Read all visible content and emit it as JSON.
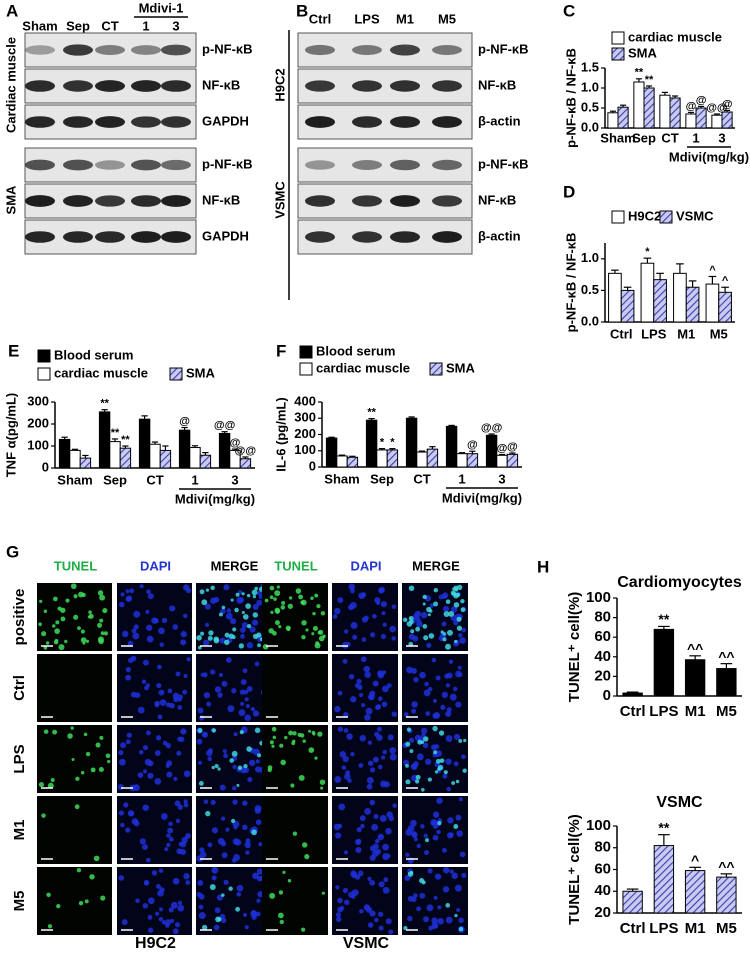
{
  "panels": {
    "A": {
      "label": "A",
      "group_label": "Mdivi-1",
      "lanes": [
        "Sham",
        "Sep",
        "CT",
        "1",
        "3"
      ],
      "sections": [
        {
          "name": "Cardiac muscle",
          "blots": [
            "p-NF-κB",
            "NF-κB",
            "GAPDH"
          ]
        },
        {
          "name": "SMA",
          "blots": [
            "p-NF-κB",
            "NF-κB",
            "GAPDH"
          ]
        }
      ]
    },
    "B": {
      "label": "B",
      "lanes": [
        "Ctrl",
        "LPS",
        "M1",
        "M5"
      ],
      "sections": [
        {
          "name": "H9C2",
          "blots": [
            "p-NF-κB",
            "NF-κB",
            "β-actin"
          ]
        },
        {
          "name": "VSMC",
          "blots": [
            "p-NF-κB",
            "NF-κB",
            "β-actin"
          ]
        }
      ]
    },
    "G": {
      "label": "G",
      "columns": [
        "TUNEL",
        "DAPI",
        "MERGE"
      ],
      "rows": [
        "positive",
        "Ctrl",
        "LPS",
        "M1",
        "M5"
      ],
      "cell_lines": [
        "H9C2",
        "VSMC"
      ]
    }
  },
  "chart_data": [
    {
      "type": "bar",
      "panel": "C",
      "ylabel": "p-NF-κB / NF-κB",
      "xlabel": "Mdivi(mg/kg)",
      "categories": [
        "Sham",
        "Sep",
        "CT",
        "1",
        "3"
      ],
      "series": [
        {
          "name": "cardiac muscle",
          "color": "#ffffff",
          "values": [
            0.38,
            1.15,
            0.82,
            0.35,
            0.32
          ],
          "errors": [
            0.04,
            0.08,
            0.07,
            0.04,
            0.03
          ],
          "annotations": [
            null,
            "**",
            null,
            "@",
            "@@"
          ]
        },
        {
          "name": "SMA",
          "color": "#3b3ea8",
          "hatch": true,
          "values": [
            0.52,
            1.0,
            0.75,
            0.5,
            0.4
          ],
          "errors": [
            0.05,
            0.05,
            0.05,
            0.04,
            0.04
          ],
          "annotations": [
            null,
            "**",
            null,
            "@",
            "@"
          ]
        }
      ],
      "ylim": [
        0,
        1.5
      ],
      "yticks": [
        {
          "value": 0,
          "label": "0.0"
        },
        0.5,
        {
          "value": 1,
          "label": "1.0"
        },
        1.5
      ]
    },
    {
      "type": "bar",
      "panel": "D",
      "ylabel": "p-NF-κB / NF-κB",
      "categories": [
        "Ctrl",
        "LPS",
        "M1",
        "M5"
      ],
      "series": [
        {
          "name": "H9C2",
          "color": "#ffffff",
          "values": [
            0.77,
            0.93,
            0.77,
            0.6
          ],
          "errors": [
            0.05,
            0.08,
            0.15,
            0.12
          ],
          "annotations": [
            null,
            "*",
            null,
            "^"
          ]
        },
        {
          "name": "VSMC",
          "color": "#3b3ea8",
          "hatch": true,
          "values": [
            0.5,
            0.67,
            0.55,
            0.47
          ],
          "errors": [
            0.05,
            0.1,
            0.1,
            0.08
          ],
          "annotations": [
            null,
            null,
            null,
            "^"
          ]
        }
      ],
      "ylim": [
        0,
        1.25
      ],
      "yticks": [
        {
          "value": 0,
          "label": "0.0"
        },
        0.5,
        {
          "value": 1,
          "label": "1.0"
        }
      ]
    },
    {
      "type": "bar",
      "panel": "E",
      "ylabel": "TNF α(pg/mL)",
      "xlabel": "Mdivi(mg/kg)",
      "categories": [
        "Sham",
        "Sep",
        "CT",
        "1",
        "3"
      ],
      "series": [
        {
          "name": "Blood serum",
          "color": "#000000",
          "values": [
            130,
            255,
            222,
            172,
            157
          ],
          "errors": [
            10,
            10,
            15,
            12,
            8
          ],
          "annotations": [
            null,
            "**",
            null,
            "@",
            "@@"
          ]
        },
        {
          "name": "cardiac muscle",
          "color": "#ffffff",
          "values": [
            80,
            120,
            108,
            93,
            80
          ],
          "errors": [
            5,
            12,
            10,
            8,
            6
          ],
          "annotations": [
            null,
            "**",
            null,
            null,
            "@"
          ]
        },
        {
          "name": "SMA",
          "color": "#3b3ea8",
          "hatch": true,
          "values": [
            45,
            90,
            80,
            58,
            42
          ],
          "errors": [
            12,
            10,
            20,
            12,
            8
          ],
          "annotations": [
            null,
            "**",
            null,
            null,
            "@@"
          ]
        }
      ],
      "ylim": [
        0,
        300
      ],
      "yticks": [
        0,
        100,
        200,
        300
      ]
    },
    {
      "type": "bar",
      "panel": "F",
      "ylabel": "IL-6 (pg/mL)",
      "xlabel": "Mdivi(mg/kg)",
      "categories": [
        "Sham",
        "Sep",
        "CT",
        "1",
        "3"
      ],
      "series": [
        {
          "name": "Blood serum",
          "color": "#000000",
          "values": [
            178,
            288,
            300,
            250,
            195
          ],
          "errors": [
            5,
            10,
            8,
            6,
            8
          ],
          "annotations": [
            null,
            "**",
            null,
            null,
            "@@"
          ]
        },
        {
          "name": "cardiac muscle",
          "color": "#ffffff",
          "values": [
            68,
            105,
            92,
            82,
            72
          ],
          "errors": [
            5,
            8,
            6,
            6,
            5
          ],
          "annotations": [
            null,
            "*",
            null,
            null,
            "@"
          ]
        },
        {
          "name": "SMA",
          "color": "#3b3ea8",
          "hatch": true,
          "values": [
            60,
            105,
            110,
            82,
            78
          ],
          "errors": [
            6,
            8,
            15,
            15,
            8
          ],
          "annotations": [
            null,
            "*",
            null,
            "@",
            "@"
          ]
        }
      ],
      "ylim": [
        0,
        400
      ],
      "yticks": [
        0,
        100,
        200,
        300,
        400
      ]
    },
    {
      "type": "bar",
      "panel": "H",
      "title": "Cardiomyocytes",
      "ylabel": "TUNEL⁺ cell(%)",
      "categories": [
        "Ctrl",
        "LPS",
        "M1",
        "M5"
      ],
      "series": [
        {
          "color": "#000000",
          "values": [
            3,
            68,
            37,
            28
          ],
          "errors": [
            1,
            3,
            4,
            5
          ],
          "annotations": [
            null,
            "**",
            "^^",
            "^^"
          ]
        }
      ],
      "ylim": [
        0,
        100
      ],
      "yticks": [
        0,
        20,
        40,
        60,
        80,
        100
      ]
    },
    {
      "type": "bar",
      "title": "VSMC",
      "ylabel": "TUNEL⁺ cell(%)",
      "categories": [
        "Ctrl",
        "LPS",
        "M1",
        "M5"
      ],
      "series": [
        {
          "color": "#3b3ea8",
          "hatch": true,
          "values": [
            40,
            82,
            59,
            53
          ],
          "errors": [
            2,
            10,
            3,
            3
          ],
          "annotations": [
            null,
            "**",
            "^",
            "^^"
          ]
        }
      ],
      "ylim": [
        20,
        100
      ],
      "yticks": [
        20,
        40,
        60,
        80,
        100
      ]
    }
  ]
}
